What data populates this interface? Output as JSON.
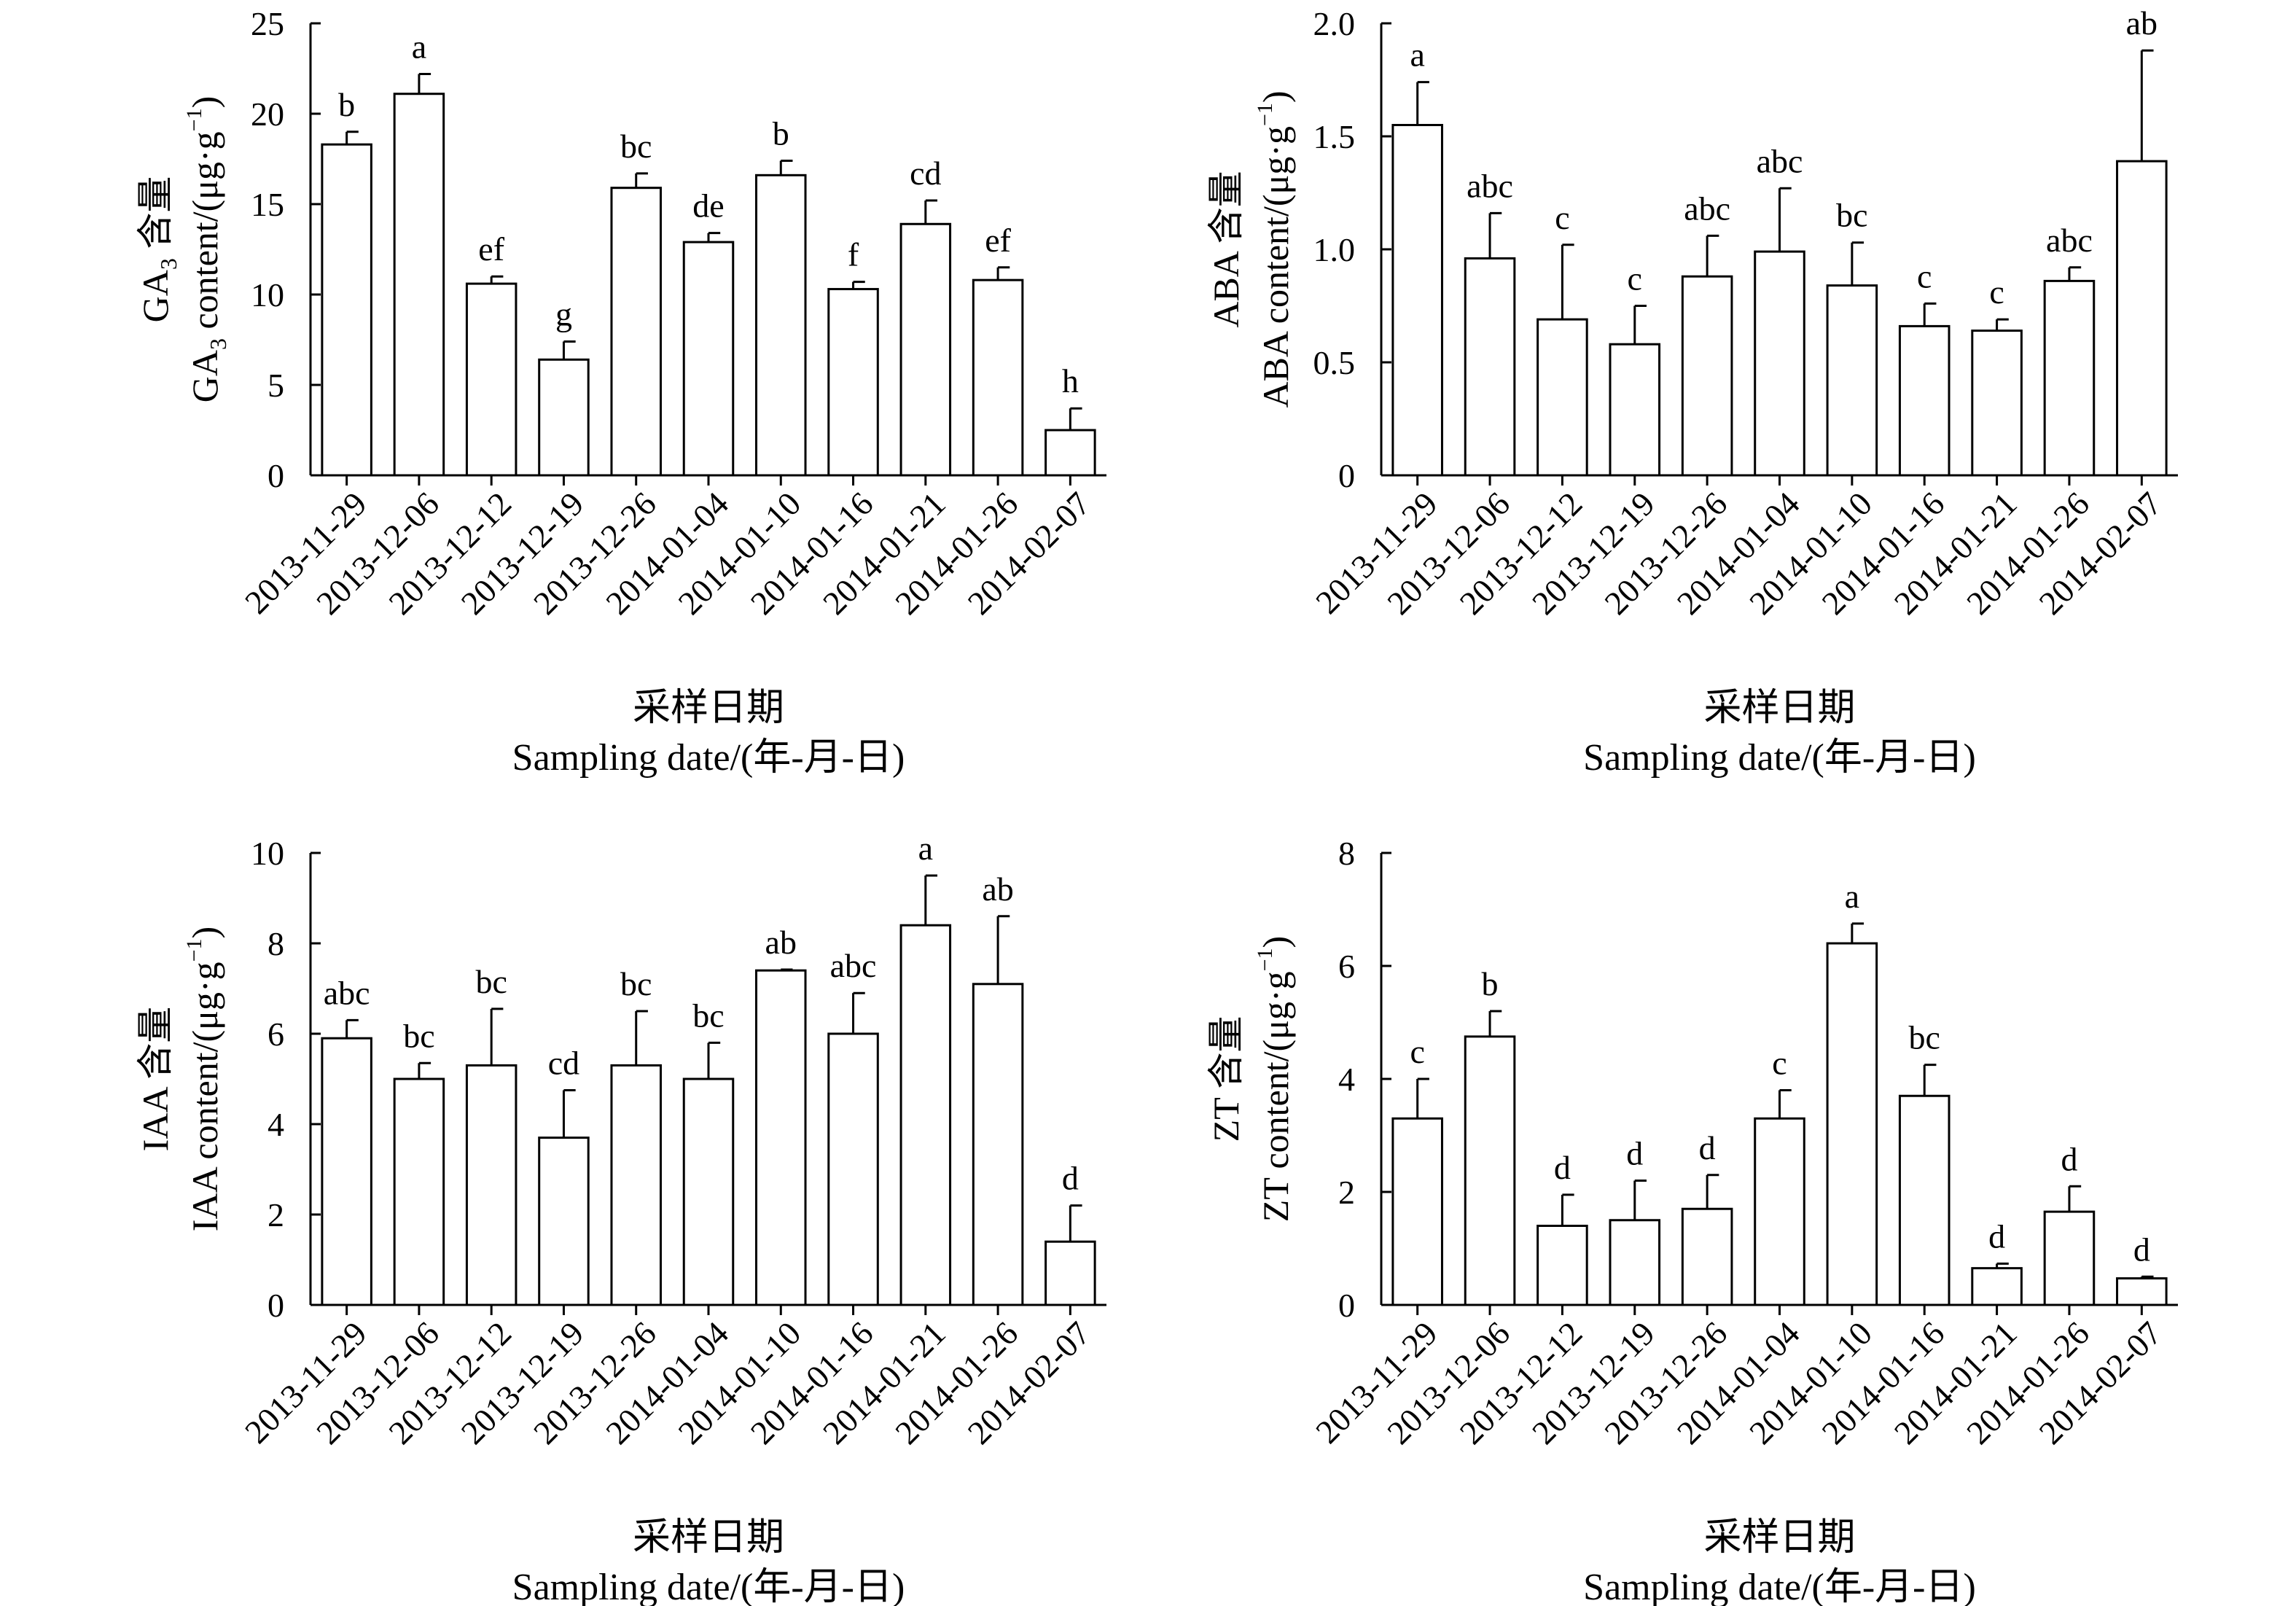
{
  "chart_data": [
    {
      "type": "bar",
      "panel": "GA3",
      "categories": [
        "2013-11-29",
        "2013-12-06",
        "2013-12-12",
        "2013-12-19",
        "2013-12-26",
        "2014-01-04",
        "2014-01-10",
        "2014-01-16",
        "2014-01-21",
        "2014-01-26",
        "2014-02-07"
      ],
      "values": [
        18.3,
        21.1,
        10.6,
        6.4,
        15.9,
        12.9,
        16.6,
        10.3,
        13.9,
        10.8,
        2.5
      ],
      "errors": [
        0.7,
        1.1,
        0.4,
        1.0,
        0.8,
        0.5,
        0.8,
        0.4,
        1.3,
        0.7,
        1.2
      ],
      "letters": [
        "b",
        "a",
        "ef",
        "g",
        "bc",
        "de",
        "b",
        "f",
        "cd",
        "ef",
        "h"
      ],
      "ylabel_cn": {
        "main": "GA",
        "sub": "3",
        "rest": " 含量"
      },
      "ylabel_en": {
        "main": "GA",
        "sub": "3",
        "rest": " content/(μg·g",
        "sup": "−1",
        "close": ")"
      },
      "ylim": [
        0,
        25
      ],
      "yticks": [
        "0",
        "5",
        "10",
        "15",
        "20",
        "25"
      ],
      "xlabel_cn": "采样日期",
      "xlabel_en": "Sampling date/(年-月-日)"
    },
    {
      "type": "bar",
      "panel": "ABA",
      "categories": [
        "2013-11-29",
        "2013-12-06",
        "2013-12-12",
        "2013-12-19",
        "2013-12-26",
        "2014-01-04",
        "2014-01-10",
        "2014-01-16",
        "2014-01-21",
        "2014-01-26",
        "2014-02-07"
      ],
      "values": [
        1.55,
        0.96,
        0.69,
        0.58,
        0.88,
        0.99,
        0.84,
        0.66,
        0.64,
        0.86,
        1.39
      ],
      "errors": [
        0.19,
        0.2,
        0.33,
        0.17,
        0.18,
        0.28,
        0.19,
        0.1,
        0.05,
        0.06,
        0.49
      ],
      "letters": [
        "a",
        "abc",
        "c",
        "c",
        "abc",
        "abc",
        "bc",
        "c",
        "c",
        "abc",
        "ab"
      ],
      "ylabel_cn": {
        "main": "ABA",
        "sub": "",
        "rest": " 含量"
      },
      "ylabel_en": {
        "main": "ABA",
        "sub": "",
        "rest": " content/(μg·g",
        "sup": "−1",
        "close": ")"
      },
      "ylim": [
        0,
        2.0
      ],
      "yticks": [
        "0",
        "0.5",
        "1.0",
        "1.5",
        "2.0"
      ],
      "xlabel_cn": "采样日期",
      "xlabel_en": "Sampling date/(年-月-日)"
    },
    {
      "type": "bar",
      "panel": "IAA",
      "categories": [
        "2013-11-29",
        "2013-12-06",
        "2013-12-12",
        "2013-12-19",
        "2013-12-26",
        "2014-01-04",
        "2014-01-10",
        "2014-01-16",
        "2014-01-21",
        "2014-01-26",
        "2014-02-07"
      ],
      "values": [
        5.9,
        5.0,
        5.3,
        3.7,
        5.3,
        5.0,
        7.4,
        6.0,
        8.4,
        7.1,
        1.4
      ],
      "errors": [
        0.4,
        0.35,
        1.25,
        1.05,
        1.2,
        0.8,
        0.02,
        0.9,
        1.1,
        1.5,
        0.8
      ],
      "letters": [
        "abc",
        "bc",
        "bc",
        "cd",
        "bc",
        "bc",
        "ab",
        "abc",
        "a",
        "ab",
        "d"
      ],
      "ylabel_cn": {
        "main": "IAA",
        "sub": "",
        "rest": " 含量"
      },
      "ylabel_en": {
        "main": "IAA",
        "sub": "",
        "rest": " content/(μg·g",
        "sup": "−1",
        "close": ")"
      },
      "ylim": [
        0,
        10
      ],
      "yticks": [
        "0",
        "2",
        "4",
        "6",
        "8",
        "10"
      ],
      "xlabel_cn": "采样日期",
      "xlabel_en": "Sampling date/(年-月-日)"
    },
    {
      "type": "bar",
      "panel": "ZT",
      "categories": [
        "2013-11-29",
        "2013-12-06",
        "2013-12-12",
        "2013-12-19",
        "2013-12-26",
        "2014-01-04",
        "2014-01-10",
        "2014-01-16",
        "2014-01-21",
        "2014-01-26",
        "2014-02-07"
      ],
      "values": [
        3.3,
        4.75,
        1.4,
        1.5,
        1.7,
        3.3,
        6.4,
        3.7,
        0.65,
        1.65,
        0.47
      ],
      "errors": [
        0.7,
        0.45,
        0.55,
        0.7,
        0.6,
        0.5,
        0.35,
        0.55,
        0.08,
        0.45,
        0.03
      ],
      "letters": [
        "c",
        "b",
        "d",
        "d",
        "d",
        "c",
        "a",
        "bc",
        "d",
        "d",
        "d"
      ],
      "ylabel_cn": {
        "main": "ZT",
        "sub": "",
        "rest": " 含量"
      },
      "ylabel_en": {
        "main": "ZT",
        "sub": "",
        "rest": " content/(μg·g",
        "sup": "−1",
        "close": ")"
      },
      "ylim": [
        0,
        8
      ],
      "yticks": [
        "0",
        "2",
        "4",
        "6",
        "8"
      ],
      "xlabel_cn": "采样日期",
      "xlabel_en": "Sampling date/(年-月-日)"
    }
  ]
}
